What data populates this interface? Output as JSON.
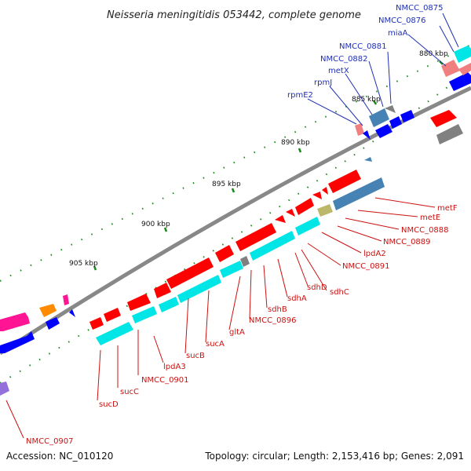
{
  "title": "Neisseria meningitidis 053442, complete genome",
  "footer": {
    "accession": "Accession: NC_010120",
    "summary": "Topology: circular; Length: 2,153,416 bp; Genes: 2,091"
  },
  "ticks": [
    "880 kbp",
    "885 kbp",
    "890 kbp",
    "895 kbp",
    "900 kbp",
    "905 kbp"
  ],
  "blue_labels": [
    "NMCC_0875",
    "NMCC_0876",
    "miaA",
    "NMCC_0881",
    "NMCC_0882",
    "metX",
    "rpmJ",
    "rpmE2"
  ],
  "red_labels_right": [
    "metF",
    "metE",
    "NMCC_0888",
    "NMCC_0889",
    "lpdA2",
    "NMCC_0891",
    "sdhC",
    "sdhD",
    "sdhA",
    "sdhB",
    "NMCC_0896",
    "gltA",
    "sucA",
    "sucB",
    "lpdA3",
    "NMCC_0901",
    "sucC",
    "sucD",
    "NMCC_0907"
  ],
  "colors": {
    "cds_forward": "#ff0000",
    "cds_reverse": "#0000ff",
    "rna": "#00e5e5",
    "backbone": "#888888",
    "tick": "#1a8a1a",
    "steel": "#4682b4",
    "khaki": "#bdb76b",
    "orange": "#ff8c00",
    "pink": "#ff1493",
    "salmon": "#f08080",
    "purple": "#9370db",
    "grey": "#808080"
  }
}
